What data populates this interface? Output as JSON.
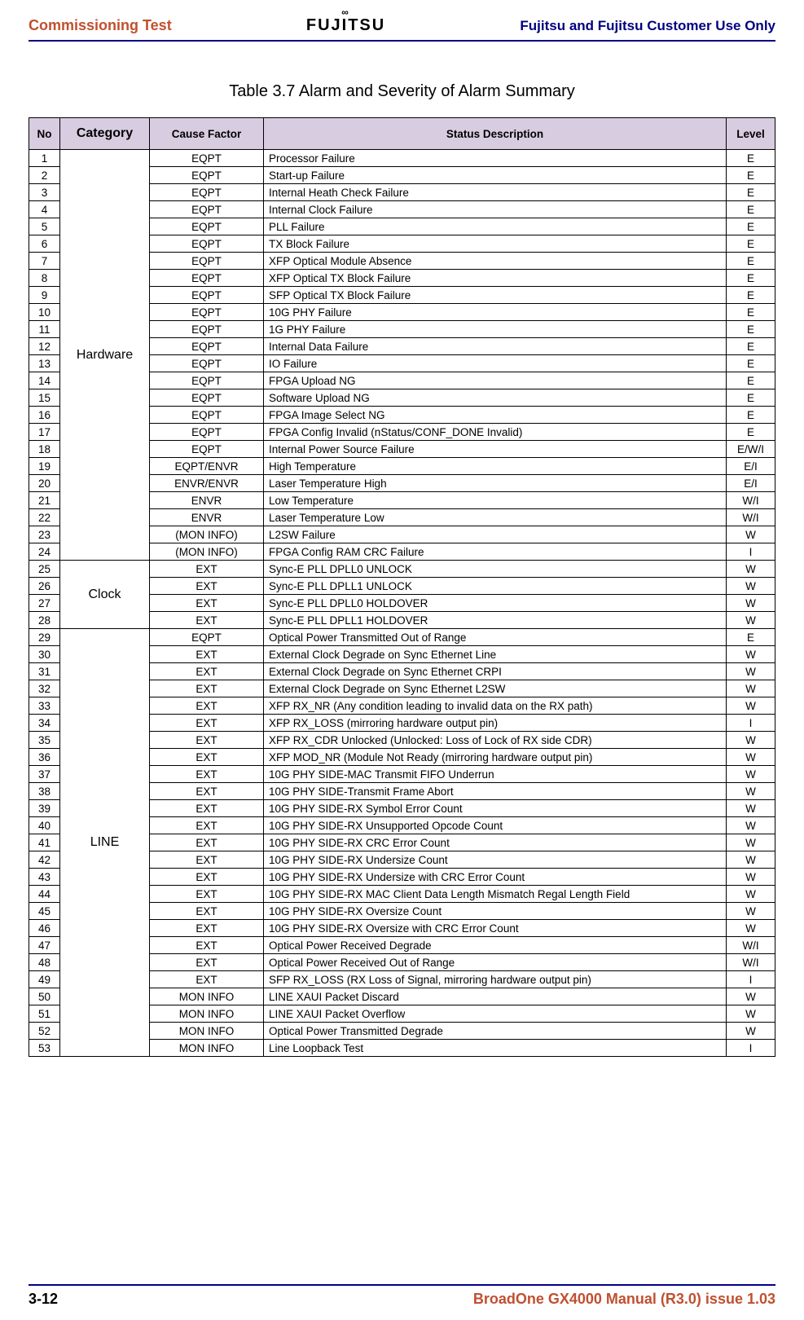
{
  "header": {
    "left": "Commissioning Test",
    "brand": "FUJITSU",
    "right": "Fujitsu and Fujitsu Customer Use Only"
  },
  "table": {
    "title": "Table 3.7 Alarm and Severity of Alarm Summary",
    "headers": {
      "no": "No",
      "category": "Category",
      "cause": "Cause Factor",
      "desc": "Status Description",
      "level": "Level"
    },
    "groups": [
      {
        "category": "Hardware",
        "rows": [
          {
            "no": "1",
            "cause": "EQPT",
            "desc": "Processor Failure",
            "level": "E"
          },
          {
            "no": "2",
            "cause": "EQPT",
            "desc": "Start-up Failure",
            "level": "E"
          },
          {
            "no": "3",
            "cause": "EQPT",
            "desc": "Internal Heath Check Failure",
            "level": "E"
          },
          {
            "no": "4",
            "cause": "EQPT",
            "desc": "Internal Clock Failure",
            "level": "E"
          },
          {
            "no": "5",
            "cause": "EQPT",
            "desc": "PLL Failure",
            "level": "E"
          },
          {
            "no": "6",
            "cause": "EQPT",
            "desc": "TX Block Failure",
            "level": "E"
          },
          {
            "no": "7",
            "cause": "EQPT",
            "desc": "XFP Optical Module Absence",
            "level": "E"
          },
          {
            "no": "8",
            "cause": "EQPT",
            "desc": "XFP Optical TX Block Failure",
            "level": "E"
          },
          {
            "no": "9",
            "cause": "EQPT",
            "desc": "SFP Optical TX Block Failure",
            "level": "E"
          },
          {
            "no": "10",
            "cause": "EQPT",
            "desc": "10G PHY Failure",
            "level": "E"
          },
          {
            "no": "11",
            "cause": "EQPT",
            "desc": "1G PHY Failure",
            "level": "E"
          },
          {
            "no": "12",
            "cause": "EQPT",
            "desc": "Internal Data Failure",
            "level": "E"
          },
          {
            "no": "13",
            "cause": "EQPT",
            "desc": "IO Failure",
            "level": "E"
          },
          {
            "no": "14",
            "cause": "EQPT",
            "desc": "FPGA Upload NG",
            "level": "E"
          },
          {
            "no": "15",
            "cause": "EQPT",
            "desc": "Software Upload NG",
            "level": "E"
          },
          {
            "no": "16",
            "cause": "EQPT",
            "desc": "FPGA Image Select NG",
            "level": "E"
          },
          {
            "no": "17",
            "cause": "EQPT",
            "desc": "FPGA Config Invalid (nStatus/CONF_DONE Invalid)",
            "level": "E"
          },
          {
            "no": "18",
            "cause": "EQPT",
            "desc": "Internal Power Source Failure",
            "level": "E/W/I"
          },
          {
            "no": "19",
            "cause": "EQPT/ENVR",
            "desc": "High Temperature",
            "level": "E/I"
          },
          {
            "no": "20",
            "cause": "ENVR/ENVR",
            "desc": "Laser Temperature High",
            "level": "E/I"
          },
          {
            "no": "21",
            "cause": "ENVR",
            "desc": "Low Temperature",
            "level": "W/I"
          },
          {
            "no": "22",
            "cause": "ENVR",
            "desc": "Laser Temperature Low",
            "level": "W/I"
          },
          {
            "no": "23",
            "cause": "(MON INFO)",
            "desc": "L2SW Failure",
            "level": "W"
          },
          {
            "no": "24",
            "cause": "(MON INFO)",
            "desc": "FPGA Config RAM CRC Failure",
            "level": "I"
          }
        ]
      },
      {
        "category": "Clock",
        "rows": [
          {
            "no": "25",
            "cause": "EXT",
            "desc": "Sync-E PLL DPLL0 UNLOCK",
            "level": "W"
          },
          {
            "no": "26",
            "cause": "EXT",
            "desc": "Sync-E PLL DPLL1 UNLOCK",
            "level": "W"
          },
          {
            "no": "27",
            "cause": "EXT",
            "desc": "Sync-E PLL DPLL0 HOLDOVER",
            "level": "W"
          },
          {
            "no": "28",
            "cause": "EXT",
            "desc": "Sync-E PLL DPLL1 HOLDOVER",
            "level": "W"
          }
        ]
      },
      {
        "category": "LINE",
        "rows": [
          {
            "no": "29",
            "cause": "EQPT",
            "desc": "Optical Power Transmitted Out of Range",
            "level": "E"
          },
          {
            "no": "30",
            "cause": "EXT",
            "desc": "External Clock Degrade on Sync Ethernet Line",
            "level": "W"
          },
          {
            "no": "31",
            "cause": "EXT",
            "desc": "External Clock Degrade on Sync Ethernet CRPI",
            "level": "W"
          },
          {
            "no": "32",
            "cause": "EXT",
            "desc": "External Clock Degrade on Sync Ethernet L2SW",
            "level": "W"
          },
          {
            "no": "33",
            "cause": "EXT",
            "desc": "XFP RX_NR (Any condition leading to invalid data on the RX path)",
            "level": "W"
          },
          {
            "no": "34",
            "cause": "EXT",
            "desc": "XFP RX_LOSS (mirroring hardware output pin)",
            "level": "I"
          },
          {
            "no": "35",
            "cause": "EXT",
            "desc": "XFP RX_CDR Unlocked (Unlocked: Loss of Lock of RX side CDR)",
            "level": "W"
          },
          {
            "no": "36",
            "cause": "EXT",
            "desc": "XFP MOD_NR (Module Not Ready (mirroring hardware output pin)",
            "level": "W"
          },
          {
            "no": "37",
            "cause": "EXT",
            "desc": "10G PHY SIDE-MAC Transmit FIFO Underrun",
            "level": "W"
          },
          {
            "no": "38",
            "cause": "EXT",
            "desc": "10G PHY SIDE-Transmit Frame Abort",
            "level": "W"
          },
          {
            "no": "39",
            "cause": "EXT",
            "desc": "10G PHY SIDE-RX Symbol Error Count",
            "level": "W"
          },
          {
            "no": "40",
            "cause": "EXT",
            "desc": "10G PHY SIDE-RX Unsupported Opcode Count",
            "level": "W"
          },
          {
            "no": "41",
            "cause": "EXT",
            "desc": "10G PHY SIDE-RX CRC Error Count",
            "level": "W"
          },
          {
            "no": "42",
            "cause": "EXT",
            "desc": "10G PHY SIDE-RX Undersize Count",
            "level": "W"
          },
          {
            "no": "43",
            "cause": "EXT",
            "desc": "10G PHY SIDE-RX Undersize with CRC Error Count",
            "level": "W"
          },
          {
            "no": "44",
            "cause": "EXT",
            "desc": "10G PHY SIDE-RX MAC Client Data Length Mismatch Regal Length Field",
            "level": "W"
          },
          {
            "no": "45",
            "cause": "EXT",
            "desc": "10G PHY SIDE-RX Oversize Count",
            "level": "W"
          },
          {
            "no": "46",
            "cause": "EXT",
            "desc": "10G PHY SIDE-RX Oversize with CRC Error Count",
            "level": "W"
          },
          {
            "no": "47",
            "cause": "EXT",
            "desc": "Optical Power Received Degrade",
            "level": "W/I"
          },
          {
            "no": "48",
            "cause": "EXT",
            "desc": "Optical Power Received Out of Range",
            "level": "W/I"
          },
          {
            "no": "49",
            "cause": "EXT",
            "desc": "SFP RX_LOSS (RX Loss of Signal, mirroring hardware output pin)",
            "level": "I"
          },
          {
            "no": "50",
            "cause": "MON INFO",
            "desc": "LINE XAUI Packet Discard",
            "level": "W"
          },
          {
            "no": "51",
            "cause": "MON INFO",
            "desc": "LINE XAUI Packet Overflow",
            "level": "W"
          },
          {
            "no": "52",
            "cause": "MON INFO",
            "desc": "Optical Power Transmitted Degrade",
            "level": "W"
          },
          {
            "no": "53",
            "cause": "MON INFO",
            "desc": "Line Loopback Test",
            "level": "I"
          }
        ]
      }
    ]
  },
  "footer": {
    "left": "3-12",
    "right": "BroadOne GX4000 Manual (R3.0) issue 1.03"
  }
}
